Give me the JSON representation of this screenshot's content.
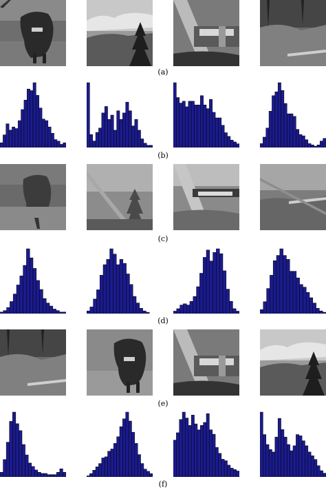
{
  "figure": {
    "panel_labels": [
      "(a)",
      "(b)",
      "(c)",
      "(d)",
      "(e)",
      "(f)"
    ]
  },
  "images": {
    "a": [
      "cow",
      "landscape-tree",
      "lamps",
      "grass"
    ],
    "c": [
      "cow",
      "landscape-tree",
      "lamps",
      "grass"
    ],
    "e": [
      "grass",
      "cow",
      "lamps",
      "landscape-tree"
    ]
  },
  "colors": {
    "bar_fill": "#1b1b8e",
    "bar_stroke": "#000000"
  },
  "chart_data": [
    {
      "type": "bar",
      "panel": "(b)",
      "values": [
        3,
        8,
        15,
        11,
        13,
        12,
        17,
        24,
        30,
        37,
        36,
        41,
        33,
        25,
        18,
        17,
        13,
        9,
        5,
        4,
        2,
        3
      ]
    },
    {
      "type": "bar",
      "panel": "(b)",
      "values": [
        30,
        6,
        3,
        7,
        9,
        16,
        19,
        13,
        15,
        8,
        17,
        13,
        16,
        21,
        17,
        10,
        13,
        8,
        4,
        2,
        1,
        1
      ]
    },
    {
      "type": "bar",
      "panel": "(b)",
      "values": [
        35,
        27,
        24,
        25,
        22,
        25,
        25,
        23,
        23,
        28,
        23,
        21,
        26,
        19,
        16,
        16,
        12,
        8,
        6,
        4,
        3,
        2
      ]
    },
    {
      "type": "bar",
      "panel": "(b)",
      "values": [
        3,
        8,
        15,
        28,
        40,
        43,
        50,
        44,
        34,
        26,
        26,
        24,
        14,
        10,
        9,
        6,
        3,
        2,
        1,
        2,
        5,
        7
      ]
    },
    {
      "type": "bar",
      "panel": "(d)",
      "values": [
        1,
        2,
        4,
        8,
        13,
        19,
        25,
        32,
        43,
        37,
        30,
        22,
        16,
        10,
        7,
        5,
        3,
        2,
        1,
        1
      ]
    },
    {
      "type": "bar",
      "panel": "(d)",
      "values": [
        2,
        5,
        11,
        18,
        29,
        37,
        41,
        49,
        45,
        37,
        41,
        38,
        30,
        22,
        13,
        8,
        4,
        2,
        1,
        0
      ]
    },
    {
      "type": "bar",
      "panel": "(d)",
      "values": [
        2,
        4,
        7,
        8,
        7,
        10,
        14,
        22,
        33,
        46,
        52,
        43,
        50,
        53,
        49,
        35,
        20,
        10,
        4,
        2
      ]
    },
    {
      "type": "bar",
      "panel": "(d)",
      "values": [
        3,
        9,
        19,
        29,
        40,
        44,
        49,
        44,
        41,
        32,
        32,
        27,
        22,
        20,
        16,
        12,
        8,
        4,
        2,
        1
      ]
    },
    {
      "type": "bar",
      "panel": "(f)",
      "values": [
        4,
        15,
        30,
        48,
        56,
        46,
        40,
        28,
        19,
        12,
        9,
        6,
        4,
        3,
        3,
        2,
        2,
        2,
        4,
        7,
        4
      ]
    },
    {
      "type": "bar",
      "panel": "(f)",
      "values": [
        1,
        3,
        6,
        9,
        12,
        17,
        18,
        23,
        25,
        30,
        36,
        45,
        52,
        58,
        50,
        40,
        30,
        20,
        12,
        7,
        5,
        3
      ]
    },
    {
      "type": "bar",
      "panel": "(f)",
      "values": [
        25,
        30,
        39,
        44,
        40,
        35,
        42,
        36,
        32,
        35,
        37,
        43,
        32,
        29,
        20,
        16,
        12,
        11,
        8,
        6,
        5,
        4
      ]
    },
    {
      "type": "bar",
      "panel": "(f)",
      "values": [
        52,
        34,
        26,
        22,
        20,
        32,
        47,
        38,
        32,
        26,
        21,
        25,
        34,
        33,
        29,
        25,
        20,
        17,
        14,
        9,
        5,
        3
      ]
    }
  ]
}
